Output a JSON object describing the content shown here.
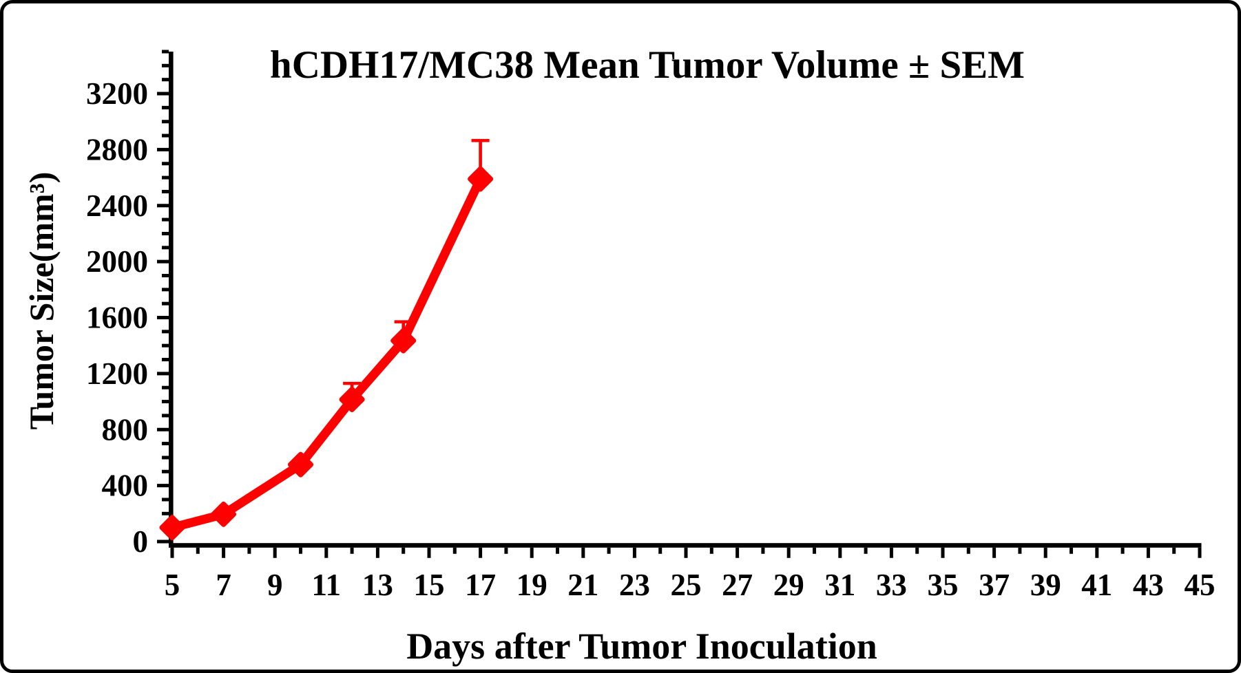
{
  "figure": {
    "title": "hCDH17/MC38 Mean Tumor Volume ± SEM",
    "x_axis_label": "Days after Tumor Inoculation",
    "y_axis_label": "Tumor Size(mm³)",
    "background_color": "#FFFFFF",
    "frame_border_color": "#000000",
    "axis_color": "#000000"
  },
  "chart_data": {
    "type": "line",
    "title": "hCDH17/MC38 Mean Tumor Volume ± SEM",
    "xlabel": "Days after Tumor Inoculation",
    "ylabel": "Tumor Size(mm³)",
    "grid": false,
    "legend": "none",
    "xlim": [
      5,
      45
    ],
    "ylim": [
      0,
      3500
    ],
    "x_tick_labels": [
      5,
      7,
      9,
      11,
      13,
      15,
      17,
      19,
      21,
      23,
      25,
      27,
      29,
      31,
      33,
      35,
      37,
      39,
      41,
      43,
      45
    ],
    "x_minor_tick_step": 1,
    "y_tick_labels": [
      0,
      400,
      800,
      1200,
      1600,
      2000,
      2400,
      2800,
      3200
    ],
    "y_major_tick_step": 400,
    "y_minor_tick_step": 100,
    "error_bars": "upper SEM only, capped, same color as series",
    "series": [
      {
        "name": "hCDH17/MC38 mean tumor volume",
        "color": "#FF0000",
        "marker": "diamond",
        "x": [
          5,
          7,
          10,
          12,
          14,
          17
        ],
        "y": [
          100,
          195,
          550,
          1015,
          1435,
          2590
        ],
        "sem_upper": [
          0,
          0,
          0,
          115,
          135,
          275
        ]
      }
    ]
  }
}
